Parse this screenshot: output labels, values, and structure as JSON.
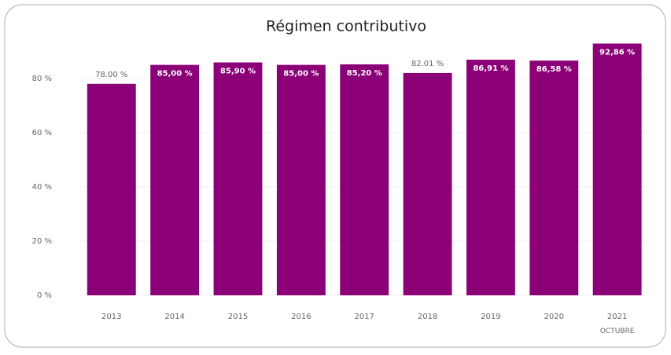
{
  "chart_data": {
    "type": "bar",
    "title": "Régimen contributivo",
    "categories": [
      "2013",
      "2014",
      "2015",
      "2016",
      "2017",
      "2018",
      "2019",
      "2020",
      "2021 OCTUBRE"
    ],
    "values": [
      78,
      85,
      85.9,
      85,
      85.2,
      82.01,
      86.91,
      86.58,
      92.86
    ],
    "value_labels": [
      "78.00 %",
      "85,00 %",
      "85,90 %",
      "85,00 %",
      "85,20 %",
      "82.01 %",
      "86,91 %",
      "86,58 %",
      "92,86 %"
    ],
    "color": "#8b0076",
    "ylim": [
      0,
      93
    ],
    "yticks": [
      {
        "value": 0,
        "label": "0 %"
      },
      {
        "value": 20,
        "label": "20 %"
      },
      {
        "value": 40,
        "label": "40 %"
      },
      {
        "value": 60,
        "label": "60 %"
      },
      {
        "value": 80,
        "label": "80 %"
      }
    ],
    "grid": true
  }
}
